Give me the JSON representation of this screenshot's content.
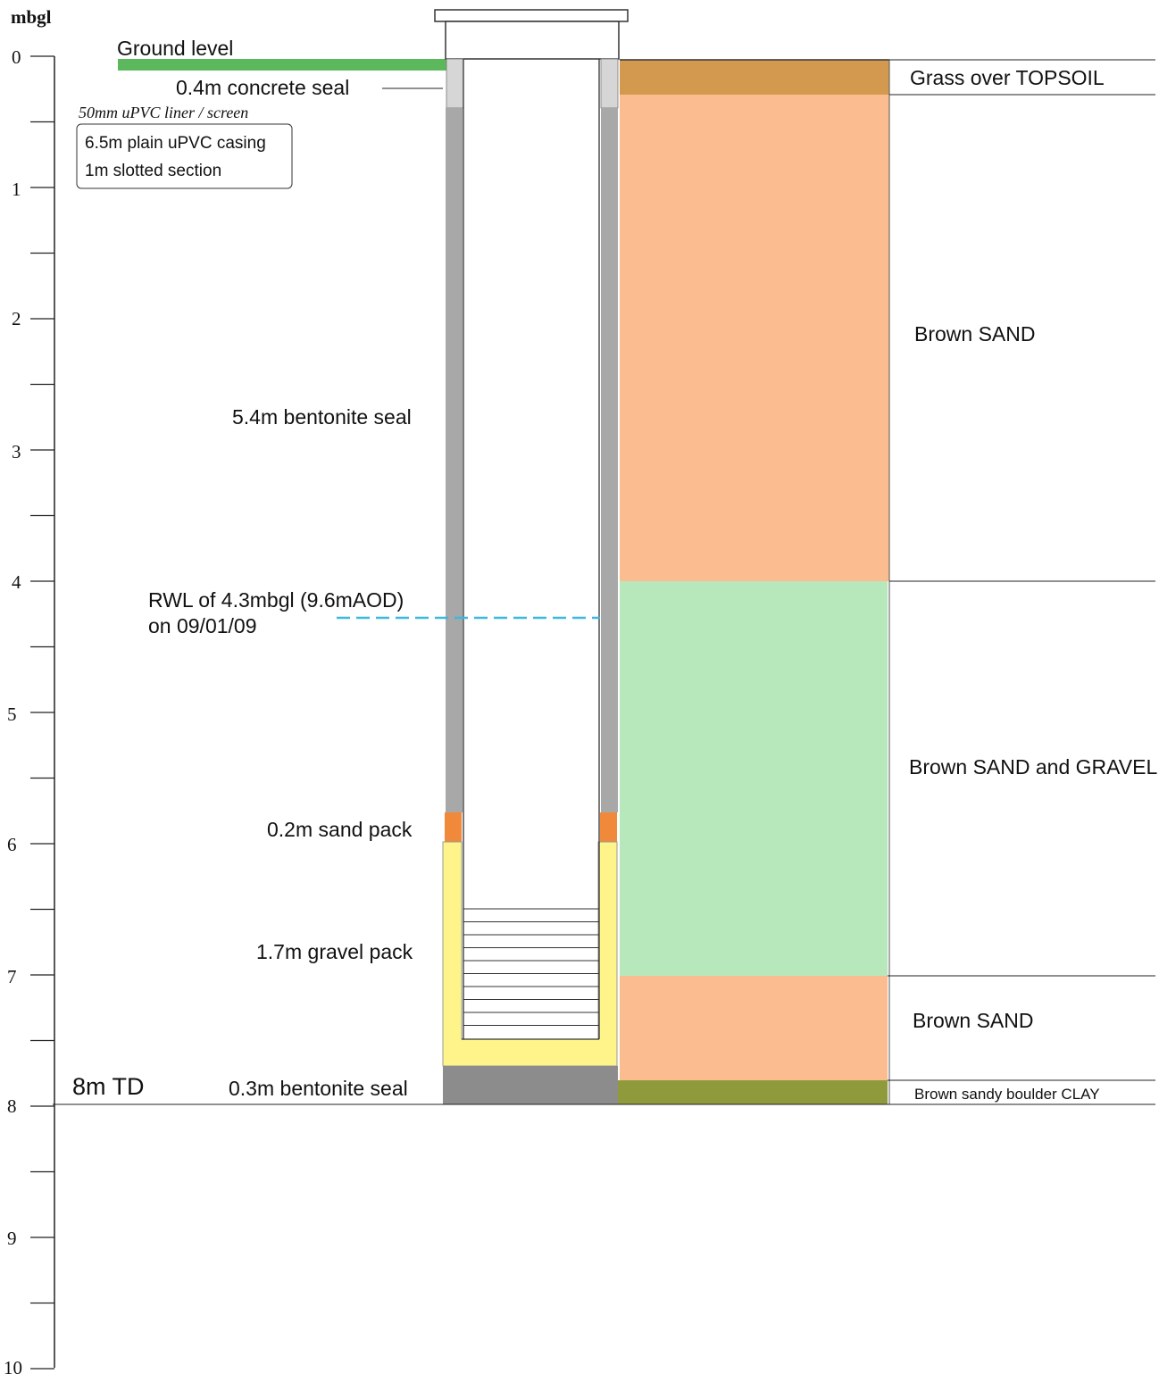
{
  "axis": {
    "unit_label": "mbgl",
    "ticks": [
      "0",
      "1",
      "2",
      "3",
      "4",
      "5",
      "6",
      "7",
      "8",
      "9",
      "10"
    ]
  },
  "annotations": {
    "ground_level": "Ground level",
    "concrete_seal": "0.4m concrete seal",
    "liner": "50mm uPVC liner / screen",
    "casing": "6.5m plain uPVC casing",
    "slotted": "1m slotted section",
    "bentonite_seal": "5.4m bentonite seal",
    "rwl_line1": "RWL of 4.3mbgl (9.6mAOD)",
    "rwl_line2": "on 09/01/09",
    "sand_pack": "0.2m sand pack",
    "gravel_pack": "1.7m gravel pack",
    "total_depth": "8m TD",
    "bottom_seal": "0.3m bentonite seal"
  },
  "strata": [
    {
      "label": "Grass over TOPSOIL",
      "top": 0,
      "bottom": 0.28,
      "color": "#d39a4f"
    },
    {
      "label": "Brown SAND",
      "top": 0.28,
      "bottom": 4.0,
      "color": "#fbbd90"
    },
    {
      "label": "Brown SAND and GRAVEL",
      "top": 4.0,
      "bottom": 7.0,
      "color": "#b6e8bb"
    },
    {
      "label": "Brown SAND",
      "top": 7.0,
      "bottom": 7.8,
      "color": "#fbbd90"
    },
    {
      "label": "Brown sandy boulder CLAY",
      "top": 7.8,
      "bottom": 8.0,
      "color": "#8f9a3c"
    }
  ],
  "well": {
    "rest_water_level_mbgl": 4.3,
    "total_depth_mbgl": 8.0,
    "colors": {
      "ground": "#5cb85c",
      "concrete": "#d6d6d6",
      "bentonite": "#a8a8a8",
      "sand_pack": "#f0893a",
      "gravel_pack": "#fff48a",
      "bottom_seal": "#8c8c8c",
      "water_line": "#3bb8e0"
    }
  }
}
